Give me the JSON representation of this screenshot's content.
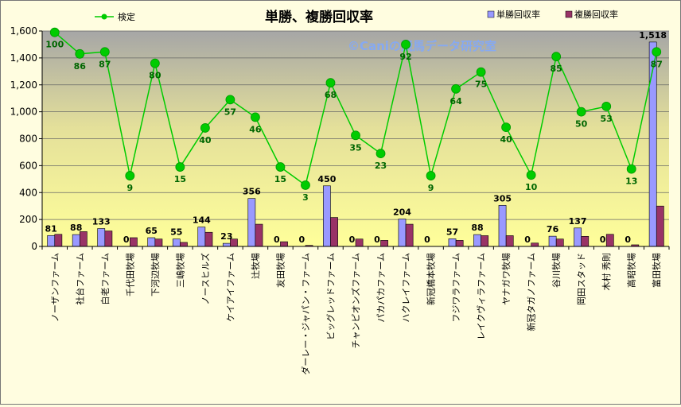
{
  "chart_data": {
    "type": "bar",
    "title": "単勝、複勝回収率",
    "watermark": "©Caniの競馬データ研究室",
    "ylim": [
      0,
      1600
    ],
    "yticks": [
      "0",
      "200",
      "400",
      "600",
      "800",
      "1,000",
      "1,200",
      "1,400",
      "1,600"
    ],
    "grid": true,
    "legend_position": "top",
    "categories": [
      "ノーザンファーム",
      "社台ファーム",
      "白老ファーム",
      "千代田牧場",
      "下河辺牧場",
      "三嶋牧場",
      "ノースヒルズ",
      "ケイアイファーム",
      "辻牧場",
      "友田牧場",
      "ダーレー・ジャパン・ファーム",
      "ビッグレッドファーム",
      "チャンピオンズファーム",
      "パカパカファーム",
      "ハクレイファーム",
      "新冠橋本牧場",
      "フジワラファーム",
      "レイクヴィラファーム",
      "ヤナガワ牧場",
      "新冠タガノファーム",
      "谷川牧場",
      "岡田スタッド",
      "木村 秀則",
      "高昭牧場",
      "富田牧場"
    ],
    "series": [
      {
        "name": "単勝回収率",
        "kind": "bar",
        "color": "#9999ff",
        "values": [
          81,
          88,
          133,
          0,
          65,
          55,
          144,
          23,
          356,
          0,
          0,
          450,
          0,
          0,
          204,
          0,
          57,
          88,
          305,
          0,
          76,
          137,
          0,
          0,
          1518
        ],
        "labels": [
          "81",
          "88",
          "133",
          "0",
          "65",
          "55",
          "144",
          "23",
          "356",
          "0",
          "0",
          "450",
          "0",
          "0",
          "204",
          "0",
          "57",
          "88",
          "305",
          "0",
          "76",
          "137",
          "0",
          "0",
          "1,518"
        ]
      },
      {
        "name": "複勝回収率",
        "kind": "bar",
        "color": "#993366",
        "values": [
          90,
          110,
          115,
          65,
          55,
          30,
          105,
          55,
          165,
          35,
          8,
          215,
          55,
          45,
          165,
          0,
          45,
          80,
          80,
          25,
          55,
          75,
          90,
          12,
          300
        ]
      },
      {
        "name": "検定",
        "kind": "line",
        "color": "#00cc00",
        "values": [
          1590,
          1430,
          1445,
          525,
          1360,
          590,
          880,
          1090,
          960,
          590,
          455,
          1215,
          825,
          690,
          1500,
          525,
          1170,
          1295,
          885,
          530,
          1410,
          1000,
          1040,
          575,
          1445
        ],
        "labels": [
          "100",
          "86",
          "87",
          "9",
          "80",
          "15",
          "40",
          "57",
          "46",
          "15",
          "3",
          "68",
          "35",
          "23",
          "92",
          "9",
          "64",
          "75",
          "40",
          "10",
          "85",
          "50",
          "53",
          "13",
          "87"
        ]
      }
    ]
  }
}
